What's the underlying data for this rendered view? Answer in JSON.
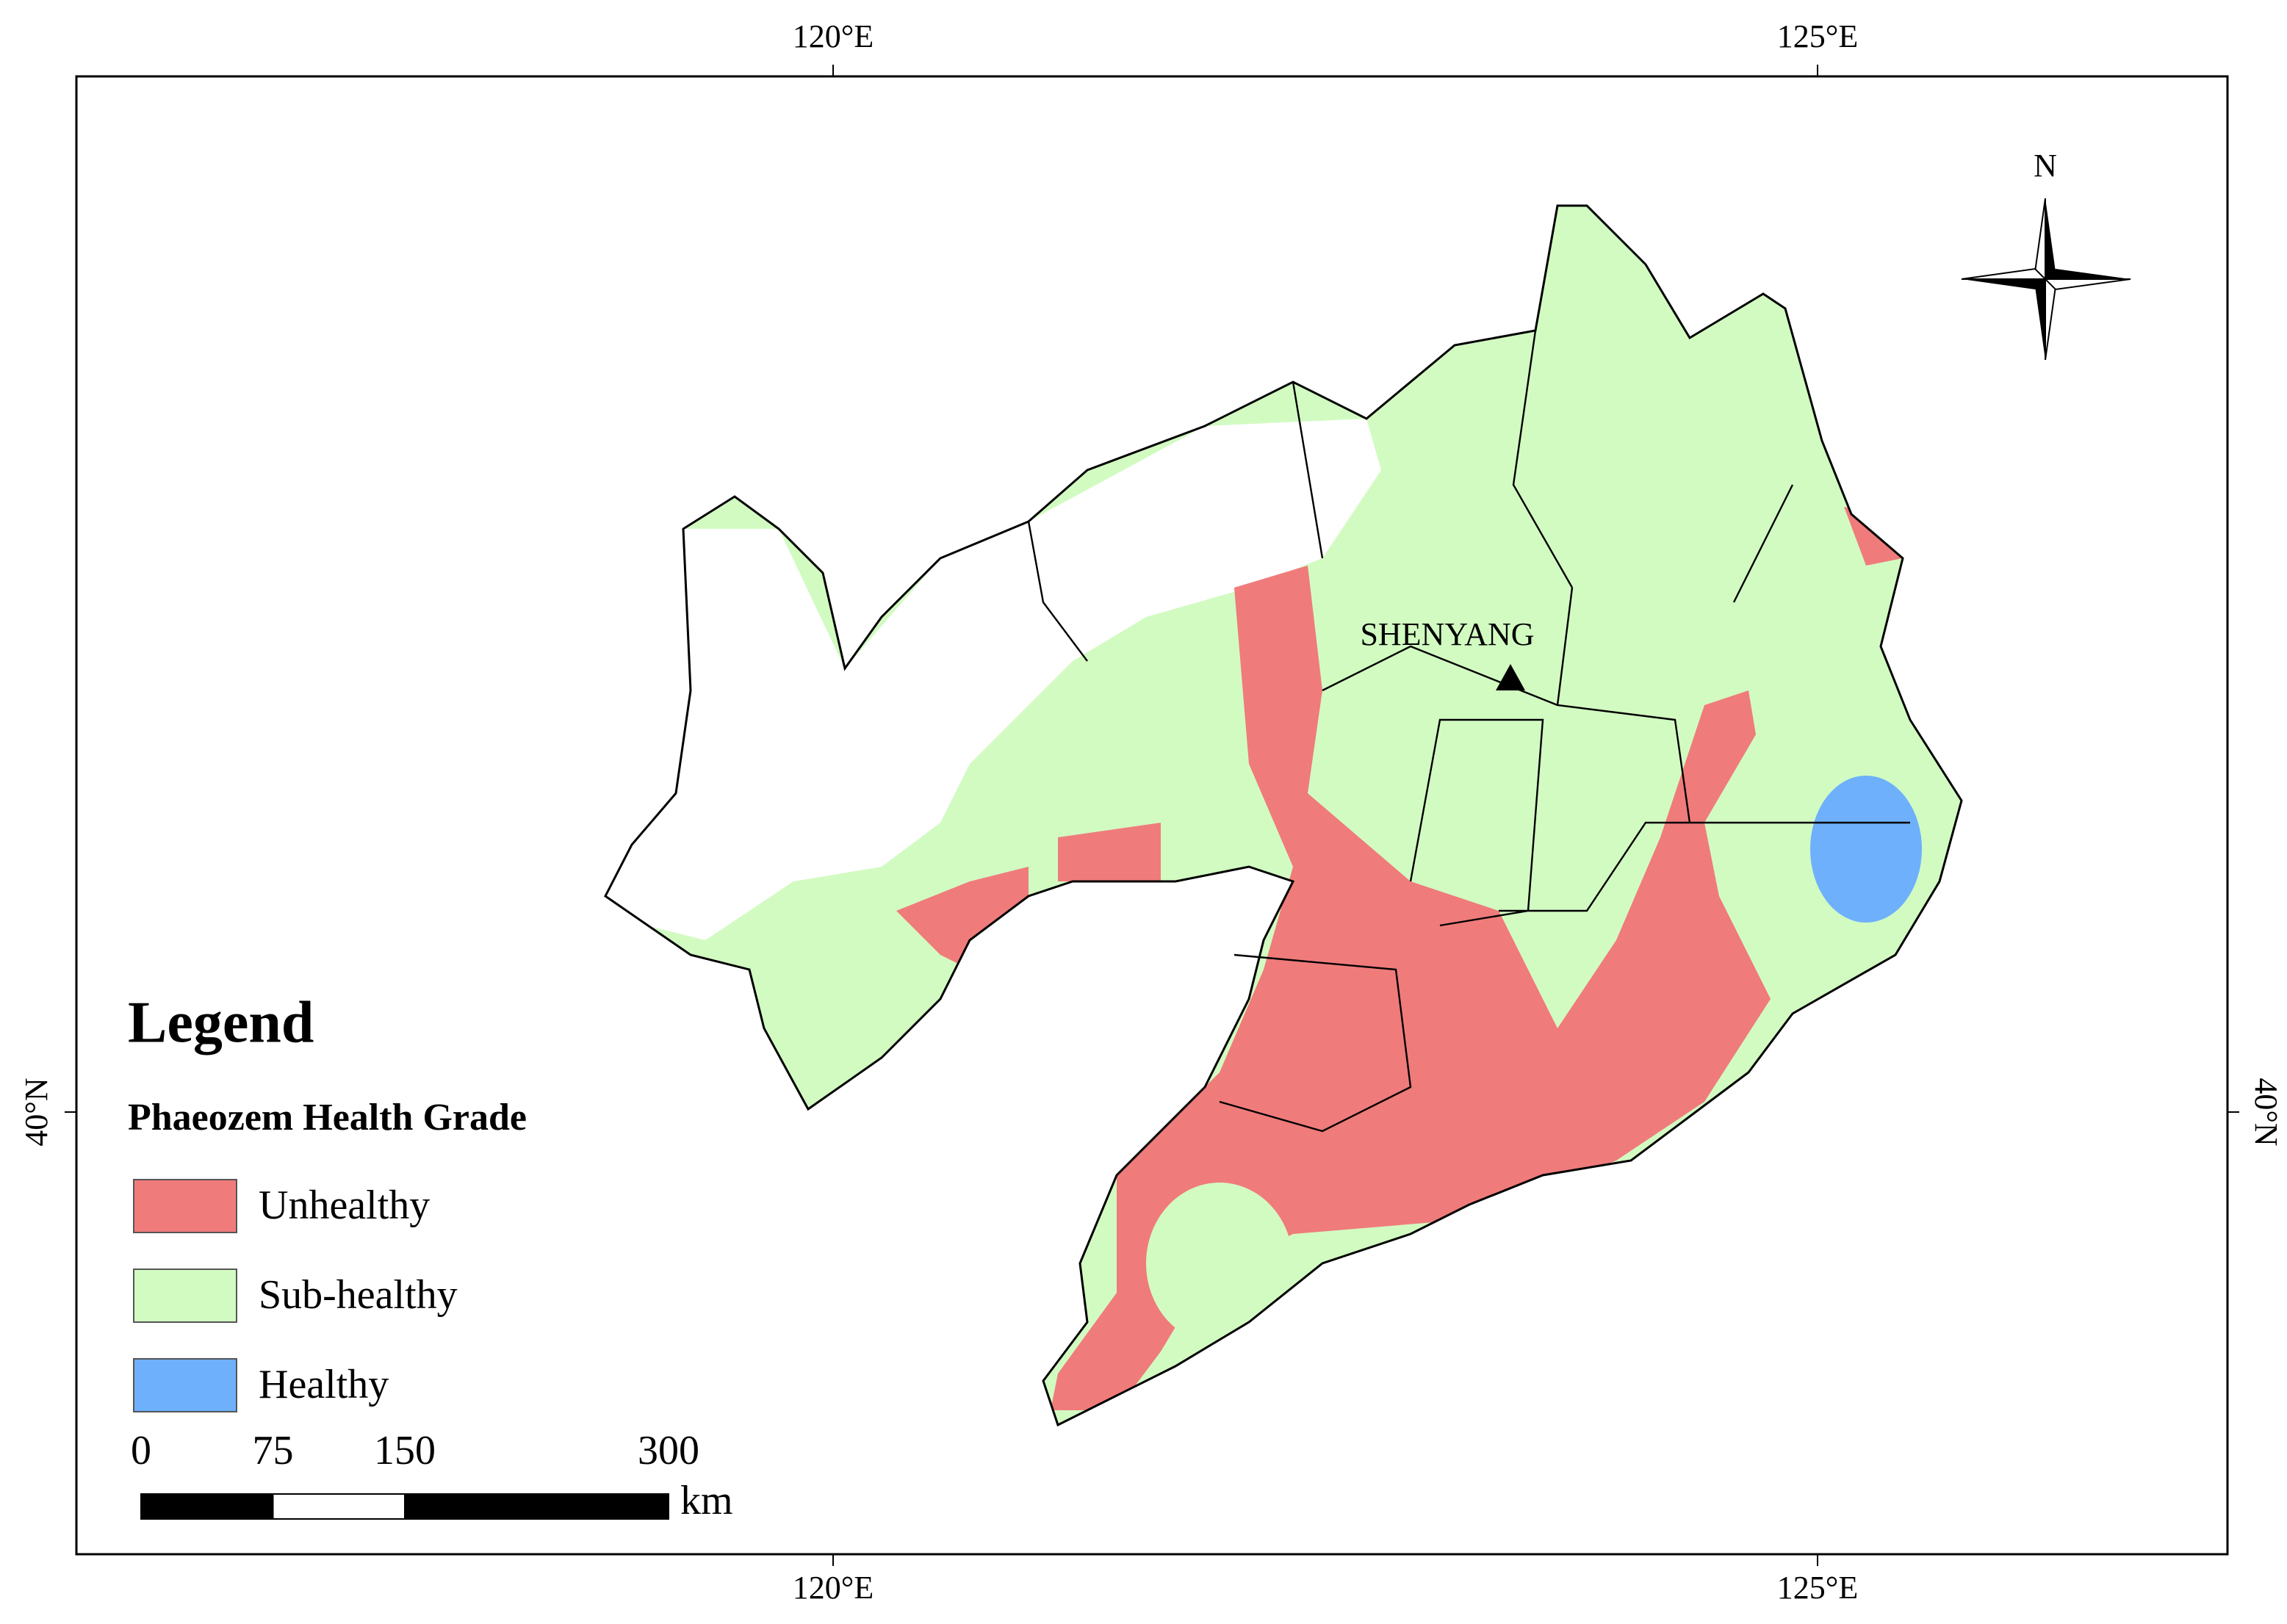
{
  "graticule": {
    "lon": [
      {
        "value": 120,
        "label": "120°E"
      },
      {
        "value": 125,
        "label": "125°E"
      }
    ],
    "lat": [
      {
        "value": 40,
        "label": "40°N"
      }
    ]
  },
  "north_label": "N",
  "city": "SHENYANG",
  "legend": {
    "title": "Legend",
    "subtitle": "Phaeozem Health Grade",
    "items": [
      {
        "label": "Unhealthy",
        "color": "#f07b7b"
      },
      {
        "label": "Sub-healthy",
        "color": "#d2fbc2"
      },
      {
        "label": "Healthy",
        "color": "#6eb0fb"
      }
    ]
  },
  "scale_bar": {
    "ticks": [
      0,
      75,
      150,
      300
    ],
    "unit": "km"
  }
}
